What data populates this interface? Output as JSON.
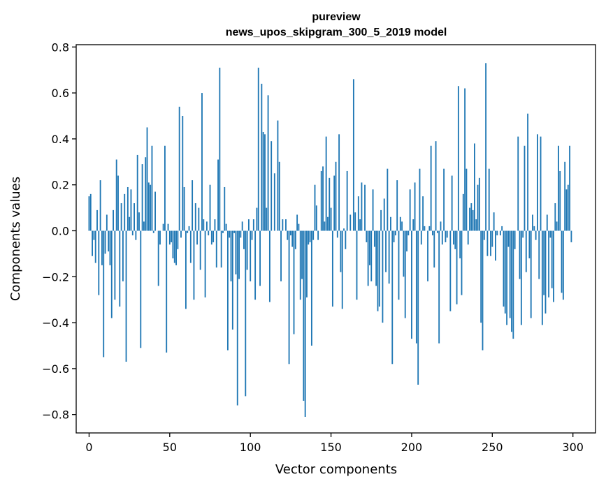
{
  "chart_data": {
    "type": "bar",
    "title": "pureview",
    "subtitle": "news_upos_skipgram_300_5_2019 model",
    "xlabel": "Vector components",
    "ylabel": "Components values",
    "xlim": [
      -8,
      314
    ],
    "ylim": [
      -0.88,
      0.81
    ],
    "xticks": [
      0,
      50,
      100,
      150,
      200,
      250,
      300
    ],
    "yticks": [
      -0.8,
      -0.6,
      -0.4,
      -0.2,
      0.0,
      0.2,
      0.4,
      0.6,
      0.8
    ],
    "ytick_labels": [
      "−0.8",
      "−0.6",
      "−0.4",
      "−0.2",
      "0.0",
      "0.2",
      "0.4",
      "0.6",
      "0.8"
    ],
    "bar_color": "#1f77b4",
    "values": [
      0.15,
      0.16,
      -0.11,
      -0.04,
      -0.14,
      0.09,
      -0.28,
      0.22,
      -0.15,
      -0.55,
      -0.1,
      0.07,
      -0.09,
      -0.15,
      -0.38,
      0.09,
      -0.3,
      0.31,
      0.24,
      -0.33,
      0.12,
      -0.22,
      0.16,
      -0.57,
      0.19,
      0.06,
      0.18,
      -0.02,
      0.12,
      -0.04,
      0.33,
      0.08,
      -0.51,
      0.29,
      0.04,
      0.32,
      0.45,
      0.21,
      0.2,
      0.37,
      -0.01,
      0.17,
      0.0,
      -0.24,
      -0.06,
      0.0,
      0.03,
      0.37,
      -0.53,
      0.03,
      -0.06,
      -0.05,
      -0.12,
      -0.14,
      -0.15,
      -0.08,
      0.54,
      -0.03,
      0.5,
      0.19,
      -0.34,
      -0.01,
      0.02,
      -0.14,
      0.22,
      -0.3,
      0.12,
      -0.06,
      0.1,
      -0.17,
      0.6,
      0.05,
      -0.29,
      0.04,
      -0.02,
      0.2,
      -0.06,
      -0.05,
      0.05,
      -0.16,
      0.31,
      0.71,
      -0.16,
      -0.01,
      0.19,
      0.03,
      -0.52,
      -0.03,
      -0.22,
      -0.43,
      -0.01,
      -0.19,
      -0.76,
      -0.21,
      -0.03,
      0.04,
      -0.08,
      -0.72,
      -0.17,
      0.05,
      -0.22,
      -0.04,
      0.05,
      -0.3,
      0.1,
      0.71,
      -0.24,
      0.64,
      0.43,
      0.42,
      0.1,
      0.59,
      -0.31,
      0.39,
      0.0,
      0.25,
      0.0,
      0.48,
      0.3,
      -0.22,
      0.05,
      0.0,
      0.05,
      -0.04,
      -0.58,
      -0.02,
      -0.07,
      -0.45,
      -0.08,
      0.07,
      0.03,
      -0.3,
      -0.21,
      -0.74,
      -0.81,
      -0.29,
      -0.06,
      -0.05,
      -0.5,
      -0.04,
      0.2,
      0.11,
      -0.04,
      0.0,
      0.26,
      0.28,
      0.04,
      0.41,
      0.06,
      0.23,
      0.1,
      -0.33,
      0.24,
      0.3,
      -0.03,
      0.42,
      -0.18,
      -0.34,
      0.01,
      -0.08,
      0.26,
      0.0,
      0.07,
      0.0,
      0.66,
      0.08,
      -0.3,
      0.15,
      0.05,
      0.21,
      0.0,
      0.2,
      -0.05,
      -0.24,
      -0.15,
      -0.22,
      0.18,
      -0.07,
      -0.24,
      -0.35,
      -0.33,
      0.09,
      -0.4,
      0.14,
      -0.18,
      0.27,
      -0.23,
      0.06,
      -0.58,
      -0.05,
      -0.02,
      0.22,
      -0.3,
      0.06,
      0.04,
      -0.2,
      -0.38,
      -0.09,
      -0.02,
      0.18,
      -0.47,
      0.05,
      0.21,
      -0.49,
      -0.67,
      0.27,
      -0.06,
      0.15,
      0.02,
      0.0,
      -0.22,
      0.02,
      0.37,
      -0.02,
      -0.16,
      0.39,
      -0.01,
      -0.49,
      0.04,
      -0.06,
      0.27,
      -0.05,
      -0.03,
      0.0,
      -0.35,
      0.24,
      -0.06,
      -0.08,
      -0.32,
      0.63,
      -0.12,
      -0.28,
      0.16,
      0.62,
      0.27,
      -0.06,
      0.1,
      0.12,
      0.09,
      0.38,
      0.05,
      0.2,
      0.23,
      -0.4,
      -0.52,
      -0.04,
      0.73,
      -0.11,
      0.27,
      -0.11,
      -0.07,
      0.08,
      -0.13,
      -0.02,
      0.0,
      -0.02,
      0.02,
      -0.33,
      -0.36,
      -0.41,
      -0.07,
      -0.38,
      -0.44,
      -0.47,
      -0.08,
      0.0,
      0.41,
      -0.21,
      -0.41,
      -0.03,
      0.37,
      -0.18,
      0.51,
      -0.12,
      -0.38,
      0.07,
      0.02,
      -0.04,
      0.42,
      -0.21,
      0.41,
      -0.41,
      -0.28,
      -0.36,
      0.07,
      -0.29,
      -0.03,
      -0.25,
      -0.31,
      0.12,
      0.04,
      0.37,
      0.26,
      -0.27,
      -0.3,
      0.3,
      0.18,
      0.2,
      0.37,
      -0.05
    ]
  }
}
